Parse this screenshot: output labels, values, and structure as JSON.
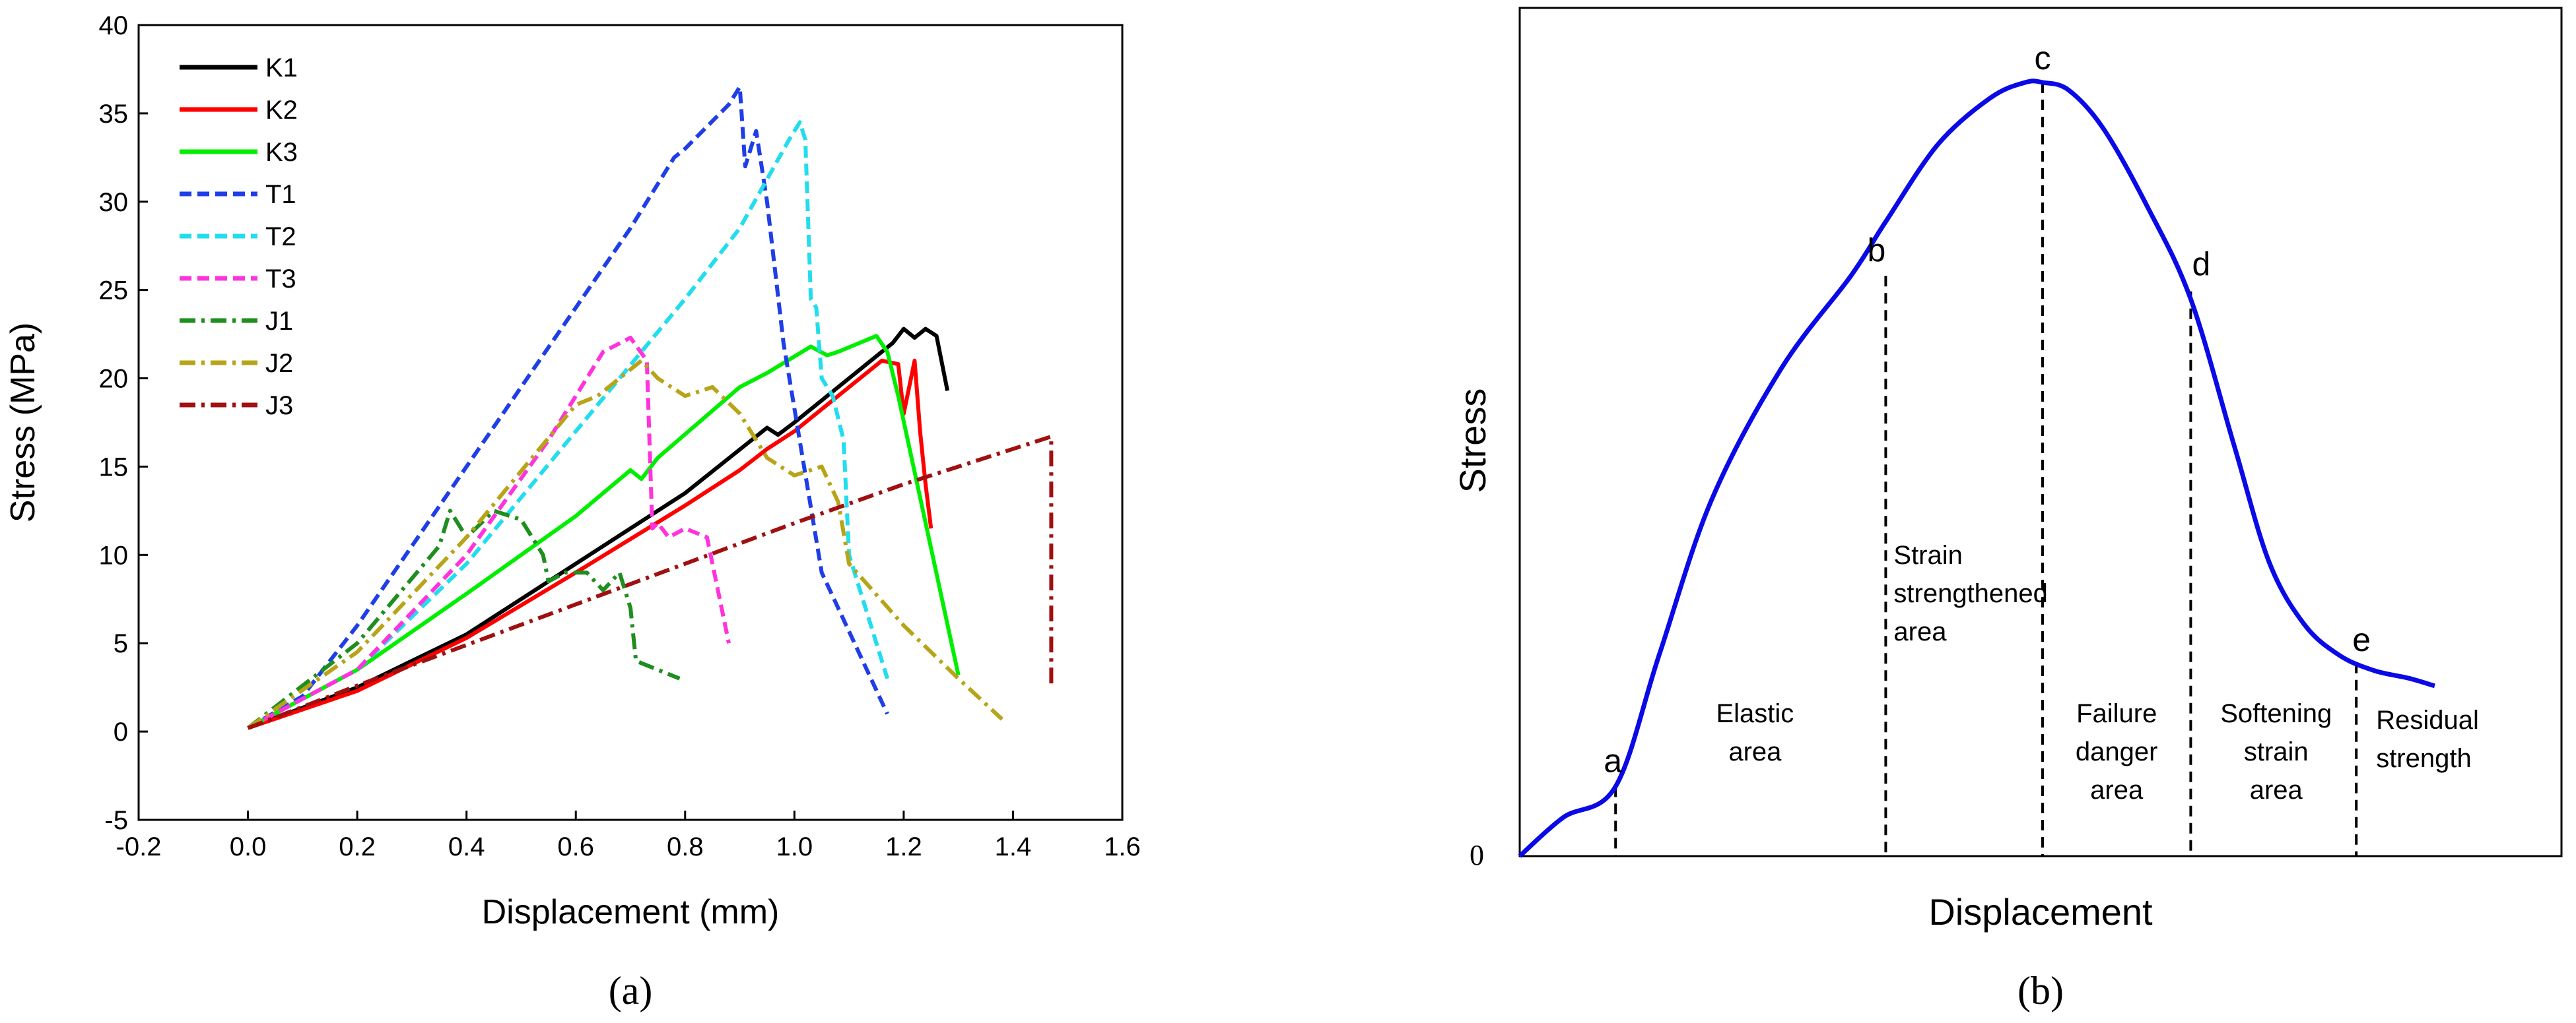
{
  "chart_data": [
    {
      "type": "line",
      "panel_label": "a",
      "xlabel": "Displacement (mm)",
      "ylabel": "Stress (MPa)",
      "xlim": [
        -0.2,
        1.6
      ],
      "ylim": [
        -5,
        40
      ],
      "xticks": [
        -0.2,
        0.0,
        0.2,
        0.4,
        0.6,
        0.8,
        1.0,
        1.2,
        1.4,
        1.6
      ],
      "xtick_labels": [
        "-0.2",
        "0.0",
        "0.2",
        "0.4",
        "0.6",
        "0.8",
        "1.0",
        "1.2",
        "1.4",
        "1.6"
      ],
      "yticks": [
        -5,
        0,
        5,
        10,
        15,
        20,
        25,
        30,
        35,
        40
      ],
      "ytick_labels": [
        "-5",
        "0",
        "5",
        "10",
        "15",
        "20",
        "25",
        "30",
        "35",
        "40"
      ],
      "legend_position": "top-left",
      "series": [
        {
          "name": "K1",
          "color": "#000000",
          "dash": "solid",
          "x": [
            0,
            0.2,
            0.4,
            0.6,
            0.8,
            0.95,
            0.97,
            1.0,
            1.1,
            1.18,
            1.2,
            1.22,
            1.24,
            1.26,
            1.28
          ],
          "y": [
            0.2,
            2.5,
            5.5,
            9.5,
            13.5,
            17.2,
            16.8,
            17.5,
            20.0,
            22.0,
            22.8,
            22.3,
            22.8,
            22.4,
            19.3
          ]
        },
        {
          "name": "K2",
          "color": "#ff0000",
          "dash": "solid",
          "x": [
            0,
            0.2,
            0.4,
            0.6,
            0.8,
            0.9,
            0.95,
            1.0,
            1.1,
            1.16,
            1.19,
            1.2,
            1.22,
            1.23,
            1.24,
            1.25
          ],
          "y": [
            0.2,
            2.3,
            5.3,
            9.0,
            12.8,
            14.8,
            16.0,
            17.0,
            19.5,
            21.0,
            20.8,
            18.0,
            21.0,
            17.0,
            14.0,
            11.5
          ]
        },
        {
          "name": "K3",
          "color": "#00ee00",
          "dash": "solid",
          "x": [
            0,
            0.2,
            0.4,
            0.6,
            0.7,
            0.72,
            0.75,
            0.9,
            0.95,
            1.03,
            1.06,
            1.08,
            1.15,
            1.17,
            1.19,
            1.3
          ],
          "y": [
            0.2,
            3.5,
            7.8,
            12.2,
            14.8,
            14.3,
            15.5,
            19.5,
            20.3,
            21.8,
            21.3,
            21.5,
            22.4,
            21.5,
            19.0,
            3.2
          ]
        },
        {
          "name": "T1",
          "color": "#1f3ee8",
          "dash": "dash",
          "x": [
            0,
            0.1,
            0.2,
            0.3,
            0.4,
            0.5,
            0.6,
            0.7,
            0.78,
            0.8,
            0.88,
            0.9,
            0.91,
            0.93,
            0.95,
            0.98,
            1.05,
            1.17
          ],
          "y": [
            0.2,
            2.0,
            6.0,
            10.5,
            15.0,
            19.5,
            24.0,
            28.5,
            32.5,
            33.0,
            35.5,
            36.5,
            32.0,
            34.0,
            30.0,
            22.0,
            9.0,
            1.0
          ]
        },
        {
          "name": "T2",
          "color": "#22ddee",
          "dash": "dash",
          "x": [
            0,
            0.2,
            0.4,
            0.6,
            0.8,
            0.9,
            0.99,
            1.01,
            1.02,
            1.03,
            1.04,
            1.05,
            1.07,
            1.09,
            1.1,
            1.17
          ],
          "y": [
            0.2,
            3.5,
            9.5,
            17.0,
            24.5,
            28.5,
            33.5,
            34.5,
            33.5,
            24.5,
            24.0,
            20.0,
            19.0,
            16.5,
            10.0,
            3.0
          ]
        },
        {
          "name": "T3",
          "color": "#ff33dd",
          "dash": "dash",
          "x": [
            0,
            0.2,
            0.4,
            0.55,
            0.65,
            0.7,
            0.73,
            0.74,
            0.75,
            0.77,
            0.8,
            0.84,
            0.88
          ],
          "y": [
            0.2,
            3.5,
            10.0,
            16.5,
            21.5,
            22.3,
            21.0,
            11.5,
            11.8,
            11.0,
            11.5,
            11.0,
            5.0
          ]
        },
        {
          "name": "J1",
          "color": "#1e8f1e",
          "dash": "dashdot",
          "x": [
            0,
            0.2,
            0.35,
            0.37,
            0.4,
            0.45,
            0.5,
            0.54,
            0.55,
            0.58,
            0.62,
            0.65,
            0.68,
            0.7,
            0.71,
            0.75,
            0.79
          ],
          "y": [
            0.2,
            5.0,
            10.5,
            12.5,
            11.0,
            12.5,
            12.0,
            10.0,
            8.5,
            9.0,
            9.0,
            8.0,
            9.0,
            7.0,
            4.0,
            3.5,
            3.0
          ]
        },
        {
          "name": "J2",
          "color": "#b8a418",
          "dash": "dashdot",
          "x": [
            0,
            0.2,
            0.4,
            0.6,
            0.64,
            0.7,
            0.72,
            0.75,
            0.8,
            0.85,
            0.9,
            0.95,
            1.0,
            1.05,
            1.08,
            1.1,
            1.2,
            1.3,
            1.38
          ],
          "y": [
            0.2,
            4.5,
            11.0,
            18.5,
            19.0,
            20.5,
            21.0,
            20.0,
            19.0,
            19.5,
            18.0,
            15.5,
            14.5,
            15.0,
            13.0,
            9.5,
            6.0,
            3.0,
            0.7
          ]
        },
        {
          "name": "J3",
          "color": "#a01010",
          "dash": "dashdot",
          "x": [
            0,
            0.2,
            0.4,
            0.6,
            0.8,
            1.0,
            1.2,
            1.4,
            1.47,
            1.47
          ],
          "y": [
            0.2,
            2.6,
            4.9,
            7.2,
            9.5,
            11.8,
            14.0,
            16.0,
            16.7,
            2.5
          ]
        }
      ]
    },
    {
      "type": "line",
      "panel_label": "b",
      "xlabel": "Displacement",
      "ylabel": "Stress",
      "origin_label": "0",
      "curve_color": "#0a0ae6",
      "points": [
        {
          "label": "a",
          "x": 0.11,
          "y": 0.09
        },
        {
          "label": "b",
          "x": 0.42,
          "y": 0.75
        },
        {
          "label": "c",
          "x": 0.6,
          "y": 1.0
        },
        {
          "label": "d",
          "x": 0.77,
          "y": 0.73
        },
        {
          "label": "e",
          "x": 0.96,
          "y": 0.25
        }
      ],
      "curve": {
        "x": [
          0,
          0.05,
          0.11,
          0.16,
          0.22,
          0.3,
          0.38,
          0.42,
          0.48,
          0.54,
          0.58,
          0.6,
          0.63,
          0.67,
          0.72,
          0.77,
          0.82,
          0.86,
          0.9,
          0.94,
          0.98,
          1.02,
          1.05
        ],
        "y": [
          0,
          0.05,
          0.09,
          0.26,
          0.46,
          0.63,
          0.75,
          0.82,
          0.92,
          0.98,
          1.0,
          1.0,
          0.99,
          0.94,
          0.84,
          0.72,
          0.53,
          0.38,
          0.3,
          0.26,
          0.24,
          0.23,
          0.22
        ]
      },
      "regions": [
        {
          "label": "Elastic\narea"
        },
        {
          "label": "Strain\nstrengthened\narea"
        },
        {
          "label": "Failure\ndanger\narea"
        },
        {
          "label": "Softening\nstrain\narea"
        },
        {
          "label": "Residual\nstrength"
        }
      ]
    }
  ]
}
